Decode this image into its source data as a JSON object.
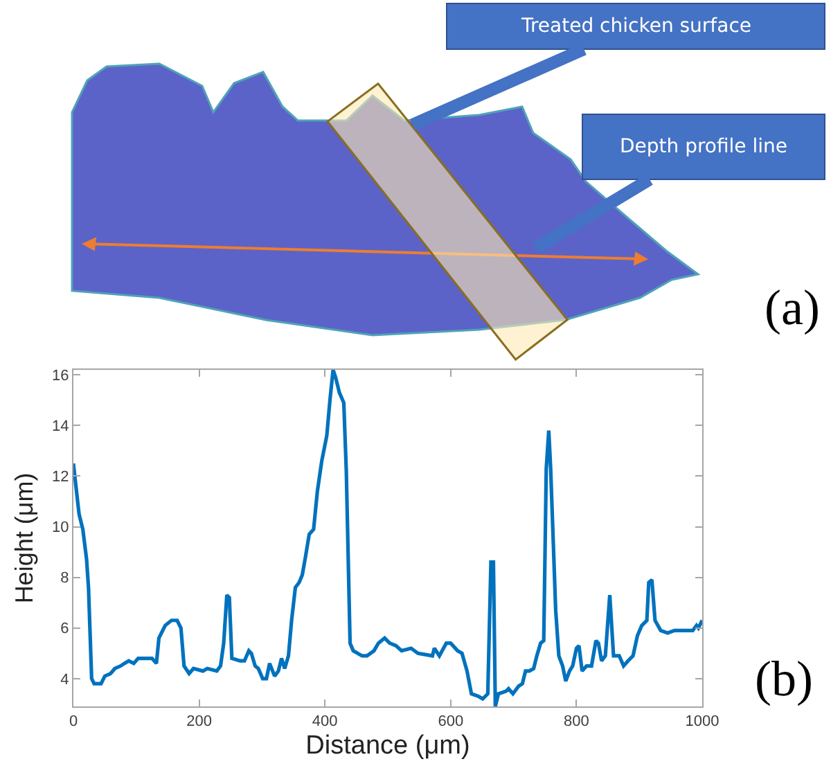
{
  "chart_data": {
    "type": "line",
    "xlabel": "Distance (μm)",
    "ylabel": "Height (μm)",
    "x": [
      0,
      4,
      9,
      15,
      21,
      24,
      29,
      33,
      44,
      50,
      59,
      66,
      75,
      81,
      88,
      96,
      103,
      125,
      132,
      136,
      146,
      156,
      165,
      171,
      176,
      184,
      191,
      206,
      213,
      228,
      234,
      239,
      244,
      248,
      252,
      265,
      272,
      279,
      283,
      289,
      294,
      301,
      307,
      312,
      320,
      326,
      331,
      336,
      342,
      347,
      353,
      359,
      364,
      369,
      375,
      382,
      388,
      395,
      403,
      408,
      413,
      417,
      423,
      430,
      434,
      440,
      445,
      452,
      459,
      467,
      478,
      485,
      495,
      503,
      513,
      522,
      537,
      548,
      571,
      574,
      582,
      593,
      600,
      611,
      618,
      626,
      633,
      644,
      651,
      659,
      664,
      668,
      671,
      676,
      688,
      692,
      699,
      708,
      714,
      719,
      725,
      732,
      737,
      743,
      748,
      752,
      756,
      759,
      767,
      772,
      778,
      783,
      789,
      794,
      800,
      804,
      809,
      816,
      824,
      831,
      835,
      840,
      846,
      853,
      859,
      868,
      875,
      882,
      890,
      897,
      904,
      912,
      915,
      920,
      925,
      934,
      945,
      956,
      985,
      991,
      994,
      1000
    ],
    "series": [
      {
        "color": "#0072bd",
        "values": [
          12.5,
          11.6,
          10.5,
          9.9,
          8.7,
          7.6,
          4.0,
          3.8,
          3.8,
          4.1,
          4.2,
          4.4,
          4.5,
          4.6,
          4.7,
          4.6,
          4.8,
          4.8,
          4.6,
          5.6,
          6.1,
          6.3,
          6.3,
          6.0,
          4.5,
          4.2,
          4.4,
          4.3,
          4.4,
          4.3,
          4.5,
          5.4,
          7.3,
          7.2,
          4.8,
          4.7,
          4.7,
          5.1,
          5.0,
          4.5,
          4.4,
          4.0,
          4.0,
          4.6,
          4.1,
          4.3,
          4.8,
          4.4,
          4.9,
          6.3,
          7.6,
          7.8,
          8.1,
          8.8,
          9.7,
          9.9,
          11.4,
          12.6,
          13.6,
          15.0,
          16.2,
          15.9,
          15.3,
          14.9,
          12.2,
          5.4,
          5.1,
          5.0,
          4.9,
          4.9,
          5.1,
          5.4,
          5.6,
          5.4,
          5.3,
          5.1,
          5.2,
          5.0,
          4.9,
          5.2,
          4.9,
          5.4,
          5.4,
          5.1,
          5.0,
          4.3,
          3.4,
          3.3,
          3.2,
          3.4,
          8.6,
          8.6,
          2.9,
          3.4,
          3.5,
          3.6,
          3.4,
          3.7,
          3.8,
          4.3,
          4.3,
          4.4,
          4.9,
          5.4,
          5.5,
          12.3,
          13.8,
          12.3,
          6.7,
          4.9,
          4.5,
          3.9,
          4.3,
          4.5,
          5.2,
          5.3,
          4.3,
          4.5,
          4.5,
          5.5,
          5.4,
          4.7,
          4.9,
          7.3,
          4.9,
          4.9,
          4.5,
          4.7,
          4.9,
          5.7,
          6.1,
          6.3,
          7.8,
          7.9,
          6.3,
          5.9,
          5.8,
          5.9,
          5.9,
          6.1,
          6.0,
          6.3
        ]
      }
    ],
    "xlim": [
      0,
      1000
    ],
    "xticks": [
      0,
      200,
      400,
      600,
      800,
      1000
    ],
    "ylim": [
      2.9,
      16.2
    ],
    "yticks": [
      4,
      6,
      8,
      10,
      12,
      14,
      16
    ],
    "grid": false,
    "marker": "none",
    "line_style": "solid",
    "annotations": [
      "Treated chicken surface",
      "Depth profile line",
      "(a)",
      "(b)"
    ]
  }
}
